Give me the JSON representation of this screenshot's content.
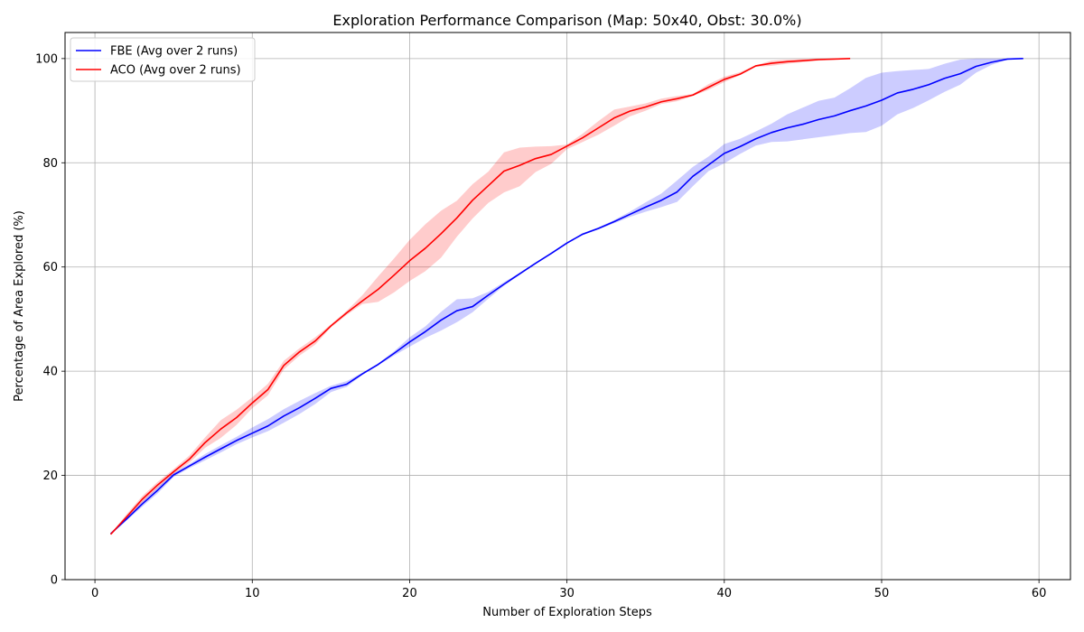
{
  "chart_data": {
    "type": "line",
    "title": "Exploration Performance Comparison (Map: 50x40, Obst: 30.0%)",
    "xlabel": "Number of Exploration Steps",
    "ylabel": "Percentage of Area Explored (%)",
    "xlim": [
      -1.9,
      62.0
    ],
    "ylim": [
      0,
      105
    ],
    "xticks": [
      0,
      10,
      20,
      30,
      40,
      50,
      60
    ],
    "yticks": [
      0,
      20,
      40,
      60,
      80,
      100
    ],
    "grid": true,
    "legend_position": "top-left",
    "series": [
      {
        "name": "FBE (Avg over 2 runs)",
        "color": "#0000ff",
        "x": [
          1,
          2,
          3,
          4,
          5,
          6,
          7,
          8,
          9,
          10,
          11,
          12,
          13,
          14,
          15,
          16,
          17,
          18,
          19,
          20,
          21,
          22,
          23,
          24,
          25,
          26,
          27,
          28,
          29,
          30,
          31,
          32,
          33,
          34,
          35,
          36,
          37,
          38,
          39,
          40,
          41,
          42,
          43,
          44,
          45,
          46,
          47,
          48,
          49,
          50,
          51,
          52,
          53,
          54,
          55,
          56,
          57,
          58,
          59
        ],
        "y": [
          8.8,
          11.6,
          14.5,
          17.2,
          20.1,
          21.8,
          23.5,
          25.1,
          26.7,
          28.1,
          29.5,
          31.4,
          33.0,
          34.8,
          36.7,
          37.5,
          39.5,
          41.3,
          43.4,
          45.6,
          47.6,
          49.8,
          51.6,
          52.4,
          54.6,
          56.7,
          58.7,
          60.7,
          62.6,
          64.6,
          66.3,
          67.4,
          68.7,
          70.1,
          71.5,
          72.8,
          74.4,
          77.4,
          79.6,
          81.8,
          83.1,
          84.6,
          85.8,
          86.7,
          87.4,
          88.3,
          89.0,
          90.0,
          90.9,
          92.0,
          93.4,
          94.1,
          95.0,
          96.2,
          97.1,
          98.5,
          99.3,
          99.9,
          100.0
        ],
        "band_upper": [
          8.9,
          11.9,
          15.0,
          17.8,
          20.5,
          22.2,
          24.1,
          25.8,
          27.4,
          29.2,
          30.8,
          32.7,
          34.3,
          35.8,
          37.2,
          38.1,
          39.7,
          41.5,
          43.8,
          46.5,
          48.6,
          51.4,
          53.8,
          54.0,
          55.2,
          57.1,
          58.9,
          60.8,
          62.7,
          64.7,
          66.5,
          67.6,
          69.0,
          70.6,
          72.4,
          74.1,
          76.6,
          79.2,
          81.2,
          83.6,
          84.6,
          86.0,
          87.5,
          89.3,
          90.6,
          91.9,
          92.5,
          94.3,
          96.3,
          97.3,
          97.6,
          97.8,
          98.0,
          99.0,
          99.8,
          100.0,
          100.0,
          100.0,
          100.0
        ],
        "band_lower": [
          8.7,
          11.3,
          14.0,
          16.6,
          19.7,
          21.4,
          22.9,
          24.4,
          26.0,
          27.3,
          28.5,
          30.1,
          31.8,
          33.7,
          36.0,
          37.0,
          39.3,
          41.1,
          43.0,
          44.7,
          46.4,
          47.8,
          49.4,
          51.3,
          53.9,
          56.4,
          58.5,
          60.6,
          62.5,
          64.5,
          66.1,
          67.2,
          68.4,
          69.6,
          70.6,
          71.5,
          72.5,
          75.5,
          78.4,
          79.9,
          81.7,
          83.3,
          84.0,
          84.1,
          84.5,
          84.9,
          85.3,
          85.7,
          85.9,
          87.1,
          89.3,
          90.5,
          92.0,
          93.6,
          95.0,
          97.3,
          98.8,
          99.8,
          100.0
        ]
      },
      {
        "name": "ACO (Avg over 2 runs)",
        "color": "#ff0000",
        "x": [
          1,
          2,
          3,
          4,
          5,
          6,
          7,
          8,
          9,
          10,
          11,
          12,
          13,
          14,
          15,
          16,
          17,
          18,
          19,
          20,
          21,
          22,
          23,
          24,
          25,
          26,
          27,
          28,
          29,
          30,
          31,
          32,
          33,
          34,
          35,
          36,
          37,
          38,
          39,
          40,
          41,
          42,
          43,
          44,
          45,
          46,
          47,
          48
        ],
        "y": [
          8.7,
          12.0,
          15.4,
          18.2,
          20.7,
          23.1,
          26.3,
          28.9,
          31.1,
          33.9,
          36.5,
          41.1,
          43.7,
          45.8,
          48.7,
          51.2,
          53.5,
          55.7,
          58.4,
          61.2,
          63.6,
          66.4,
          69.4,
          72.8,
          75.6,
          78.4,
          79.5,
          80.8,
          81.6,
          83.2,
          84.8,
          86.7,
          88.6,
          89.9,
          90.7,
          91.7,
          92.3,
          93.0,
          94.5,
          96.0,
          97.0,
          98.6,
          99.1,
          99.4,
          99.6,
          99.8,
          99.9,
          100.0
        ],
        "band_upper": [
          8.8,
          12.5,
          16.0,
          18.8,
          21.2,
          23.8,
          27.3,
          30.6,
          32.6,
          35.0,
          37.6,
          42.0,
          44.4,
          46.5,
          49.0,
          51.6,
          54.6,
          58.2,
          61.6,
          65.2,
          68.2,
          70.8,
          72.7,
          75.9,
          78.3,
          82.0,
          82.9,
          83.1,
          83.2,
          83.5,
          85.6,
          88.0,
          90.2,
          90.8,
          91.4,
          92.3,
          92.8,
          93.2,
          95.1,
          96.5,
          97.4,
          98.7,
          99.6,
          99.8,
          99.9,
          100.0,
          100.0,
          100.0
        ],
        "band_lower": [
          8.6,
          11.5,
          14.8,
          17.6,
          20.3,
          22.4,
          25.3,
          27.2,
          29.7,
          32.9,
          35.4,
          40.3,
          43.0,
          45.1,
          48.4,
          50.8,
          52.9,
          53.3,
          55.1,
          57.3,
          59.2,
          61.8,
          65.8,
          69.3,
          72.3,
          74.3,
          75.5,
          78.2,
          79.8,
          82.6,
          84.0,
          85.4,
          87.1,
          88.9,
          90.0,
          91.3,
          91.8,
          92.8,
          94.0,
          95.5,
          96.8,
          98.4,
          98.6,
          99.0,
          99.3,
          99.6,
          99.8,
          100.0
        ]
      }
    ]
  }
}
